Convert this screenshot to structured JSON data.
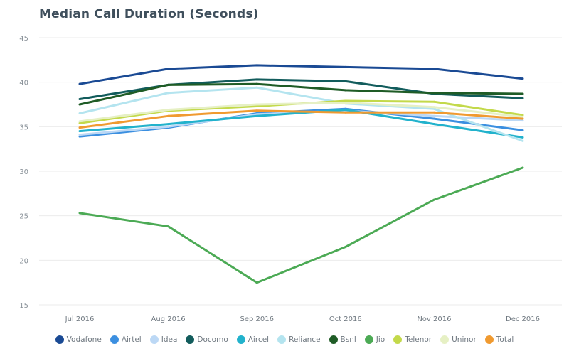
{
  "chart_data": {
    "type": "line",
    "title": "Median Call Duration (Seconds)",
    "xlabel": "",
    "ylabel": "",
    "categories": [
      "Jul 2016",
      "Aug 2016",
      "Sep 2016",
      "Oct 2016",
      "Nov 2016",
      "Dec 2016"
    ],
    "ylim": [
      15,
      45
    ],
    "yticks": [
      15,
      20,
      25,
      30,
      35,
      40,
      45
    ],
    "grid": true,
    "legend_position": "bottom",
    "series": [
      {
        "name": "Vodafone",
        "color": "#1a4a94",
        "values": [
          39.8,
          41.5,
          41.9,
          41.7,
          41.5,
          40.4
        ]
      },
      {
        "name": "Airtel",
        "color": "#3b8fe0",
        "values": [
          33.9,
          34.9,
          36.5,
          37.0,
          35.9,
          34.6
        ]
      },
      {
        "name": "Idea",
        "color": "#bcd8f5",
        "values": [
          34.1,
          35.0,
          36.4,
          36.8,
          36.2,
          35.7
        ]
      },
      {
        "name": "Docomo",
        "color": "#125c5c",
        "values": [
          38.1,
          39.7,
          40.3,
          40.1,
          38.7,
          38.2
        ]
      },
      {
        "name": "Aircel",
        "color": "#22b2cc",
        "values": [
          34.5,
          35.3,
          36.2,
          36.9,
          35.3,
          33.8
        ]
      },
      {
        "name": "Reliance",
        "color": "#b4e4ef",
        "values": [
          36.5,
          38.8,
          39.4,
          37.6,
          37.0,
          33.4
        ]
      },
      {
        "name": "Bsnl",
        "color": "#1f5c26",
        "values": [
          37.5,
          39.7,
          39.8,
          39.1,
          38.8,
          38.7
        ]
      },
      {
        "name": "Jio",
        "color": "#4caa55",
        "values": [
          25.3,
          23.8,
          17.5,
          21.5,
          26.8,
          30.4
        ]
      },
      {
        "name": "Telenor",
        "color": "#c3d94a",
        "values": [
          35.4,
          36.8,
          37.3,
          37.9,
          37.8,
          36.3
        ]
      },
      {
        "name": "Uninor",
        "color": "#e6f0c4",
        "values": [
          35.6,
          36.9,
          37.5,
          37.7,
          37.2,
          36.1
        ]
      },
      {
        "name": "Total",
        "color": "#f09a30",
        "values": [
          34.9,
          36.2,
          36.8,
          36.6,
          36.6,
          35.9
        ]
      }
    ]
  }
}
